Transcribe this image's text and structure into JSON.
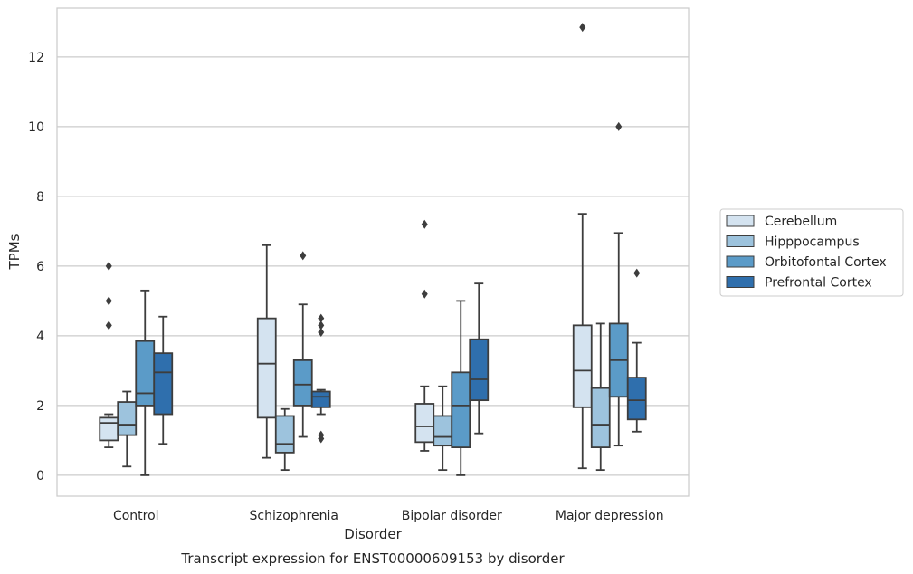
{
  "chart_data": {
    "type": "box",
    "caption": "Transcript expression for ENST00000609153 by disorder",
    "xlabel": "Disorder",
    "ylabel": "TPMs",
    "ylim": [
      -0.6,
      13.4
    ],
    "yticks": [
      0,
      2,
      4,
      6,
      8,
      10,
      12
    ],
    "grid": "horizontal",
    "legend_position": "right",
    "categories": [
      "Control",
      "Schizophrenia",
      "Bipolar disorder",
      "Major depression"
    ],
    "series": [
      {
        "name": "Cerebellum",
        "color": "#d4e3f0",
        "boxes": [
          {
            "whisker_low": 0.8,
            "q1": 1.0,
            "median": 1.5,
            "q3": 1.65,
            "whisker_high": 1.75,
            "outliers": [
              4.3,
              5.0,
              6.0
            ]
          },
          {
            "whisker_low": 0.5,
            "q1": 1.65,
            "median": 3.2,
            "q3": 4.5,
            "whisker_high": 6.6,
            "outliers": []
          },
          {
            "whisker_low": 0.7,
            "q1": 0.95,
            "median": 1.4,
            "q3": 2.05,
            "whisker_high": 2.55,
            "outliers": [
              5.2,
              7.2
            ]
          },
          {
            "whisker_low": 0.2,
            "q1": 1.95,
            "median": 3.0,
            "q3": 4.3,
            "whisker_high": 7.5,
            "outliers": [
              12.85
            ]
          }
        ]
      },
      {
        "name": "Hipppocampus",
        "color": "#9dc3dd",
        "boxes": [
          {
            "whisker_low": 0.25,
            "q1": 1.15,
            "median": 1.45,
            "q3": 2.1,
            "whisker_high": 2.4,
            "outliers": []
          },
          {
            "whisker_low": 0.15,
            "q1": 0.65,
            "median": 0.9,
            "q3": 1.7,
            "whisker_high": 1.9,
            "outliers": []
          },
          {
            "whisker_low": 0.15,
            "q1": 0.85,
            "median": 1.1,
            "q3": 1.7,
            "whisker_high": 2.55,
            "outliers": []
          },
          {
            "whisker_low": 0.15,
            "q1": 0.8,
            "median": 1.45,
            "q3": 2.5,
            "whisker_high": 4.35,
            "outliers": []
          }
        ]
      },
      {
        "name": "Orbitofontal Cortex",
        "color": "#5b9bc8",
        "boxes": [
          {
            "whisker_low": 0.0,
            "q1": 2.0,
            "median": 2.35,
            "q3": 3.85,
            "whisker_high": 5.3,
            "outliers": []
          },
          {
            "whisker_low": 1.1,
            "q1": 2.0,
            "median": 2.6,
            "q3": 3.3,
            "whisker_high": 4.9,
            "outliers": [
              6.3
            ]
          },
          {
            "whisker_low": 0.0,
            "q1": 0.8,
            "median": 2.0,
            "q3": 2.95,
            "whisker_high": 5.0,
            "outliers": []
          },
          {
            "whisker_low": 0.85,
            "q1": 2.25,
            "median": 3.3,
            "q3": 4.35,
            "whisker_high": 6.95,
            "outliers": [
              10.0
            ]
          }
        ]
      },
      {
        "name": "Prefrontal Cortex",
        "color": "#2f6fad",
        "boxes": [
          {
            "whisker_low": 0.9,
            "q1": 1.75,
            "median": 2.95,
            "q3": 3.5,
            "whisker_high": 4.55,
            "outliers": []
          },
          {
            "whisker_low": 1.75,
            "q1": 1.95,
            "median": 2.25,
            "q3": 2.4,
            "whisker_high": 2.45,
            "outliers": [
              1.05,
              1.15,
              4.1,
              4.3,
              4.5
            ]
          },
          {
            "whisker_low": 1.2,
            "q1": 2.15,
            "median": 2.75,
            "q3": 3.9,
            "whisker_high": 5.5,
            "outliers": []
          },
          {
            "whisker_low": 1.25,
            "q1": 1.6,
            "median": 2.15,
            "q3": 2.8,
            "whisker_high": 3.8,
            "outliers": [
              5.8
            ]
          }
        ]
      }
    ]
  }
}
